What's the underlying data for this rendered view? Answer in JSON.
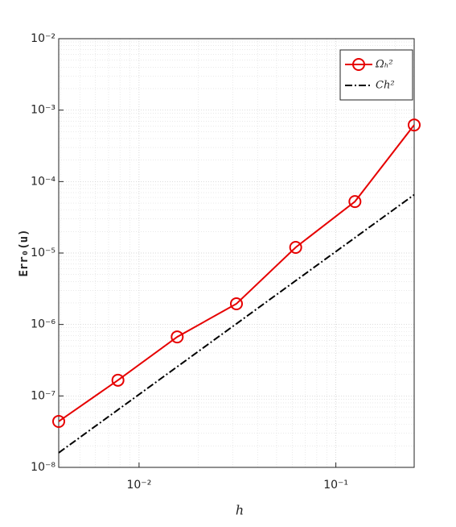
{
  "chart_data": {
    "type": "line",
    "x_label": "h",
    "y_label": "Err₀(u)",
    "x": [
      0.00390625,
      0.0078125,
      0.015625,
      0.03125,
      0.0625,
      0.125,
      0.25
    ],
    "series": [
      {
        "name": "Ωₕ²",
        "color": "#e60000",
        "style": "solid",
        "marker": "circle",
        "values": [
          4.4e-08,
          1.66e-07,
          6.7e-07,
          1.95e-06,
          1.2e-05,
          5.25e-05,
          0.00062
        ]
      },
      {
        "name": "Ch²",
        "color": "#000000",
        "style": "dashdot",
        "marker": "none",
        "values": [
          1.6e-08,
          6.4e-08,
          2.56e-07,
          1.024e-06,
          4.096e-06,
          1.638e-05,
          6.55e-05
        ]
      }
    ],
    "xlog": true,
    "ylog": true,
    "xlim": [
      0.00390625,
      0.25
    ],
    "ylim": [
      1e-08,
      0.01
    ],
    "xticks": [
      {
        "value": 0.01,
        "label": "10⁻²"
      },
      {
        "value": 0.1,
        "label": "10⁻¹"
      }
    ],
    "yticks": [
      {
        "value": 1e-08,
        "label": "10⁻⁸"
      },
      {
        "value": 1e-07,
        "label": "10⁻⁷"
      },
      {
        "value": 1e-06,
        "label": "10⁻⁶"
      },
      {
        "value": 1e-05,
        "label": "10⁻⁵"
      },
      {
        "value": 0.0001,
        "label": "10⁻⁴"
      },
      {
        "value": 0.001,
        "label": "10⁻³"
      },
      {
        "value": 0.01,
        "label": "10⁻²"
      }
    ],
    "grid": true,
    "minor_grid": true,
    "legend": "top-right"
  }
}
